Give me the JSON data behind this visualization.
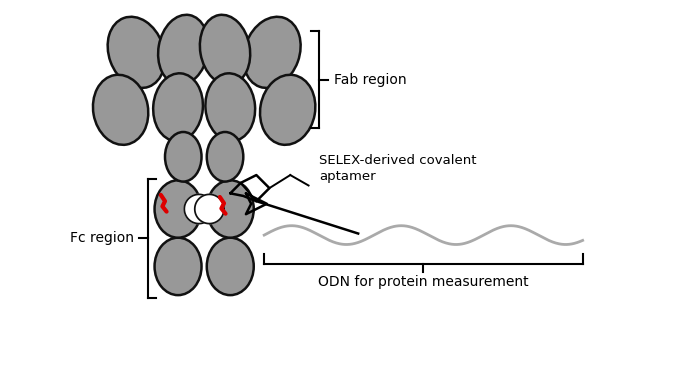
{
  "bg_color": "#ffffff",
  "ellipse_color": "#989898",
  "ellipse_edge": "#111111",
  "red_color": "#dd0000",
  "wave_color": "#aaaaaa",
  "text_color": "#000000",
  "label_fab": "Fab region",
  "label_fc": "Fc region",
  "label_selex": "SELEX-derived covalent\naptamer",
  "label_odn": "ODN for protein measurement",
  "figsize": [
    6.85,
    3.71
  ],
  "dpi": 100,
  "left_fab": {
    "outer_top": [
      1.05,
      6.05,
      1.05,
      1.4,
      20
    ],
    "outer_bottom": [
      0.75,
      4.95,
      1.05,
      1.35,
      10
    ],
    "inner_top": [
      1.95,
      6.1,
      0.95,
      1.35,
      -10
    ],
    "inner_bottom": [
      1.85,
      5.0,
      0.95,
      1.3,
      -5
    ]
  },
  "right_fab": {
    "outer_top": [
      3.65,
      6.05,
      1.05,
      1.4,
      -20
    ],
    "outer_bottom": [
      3.95,
      4.95,
      1.05,
      1.35,
      -10
    ],
    "inner_top": [
      2.75,
      6.1,
      0.95,
      1.35,
      10
    ],
    "inner_bottom": [
      2.85,
      5.0,
      0.95,
      1.3,
      5
    ]
  },
  "hinge_left": [
    1.95,
    4.05,
    0.7,
    0.95,
    0
  ],
  "hinge_right": [
    2.75,
    4.05,
    0.7,
    0.95,
    0
  ],
  "fc_top_left": [
    1.85,
    3.05,
    0.9,
    1.1,
    0
  ],
  "fc_top_right": [
    2.85,
    3.05,
    0.9,
    1.1,
    0
  ],
  "fc_bot_left": [
    1.85,
    1.95,
    0.9,
    1.1,
    0
  ],
  "fc_bot_right": [
    2.85,
    1.95,
    0.9,
    1.1,
    0
  ]
}
